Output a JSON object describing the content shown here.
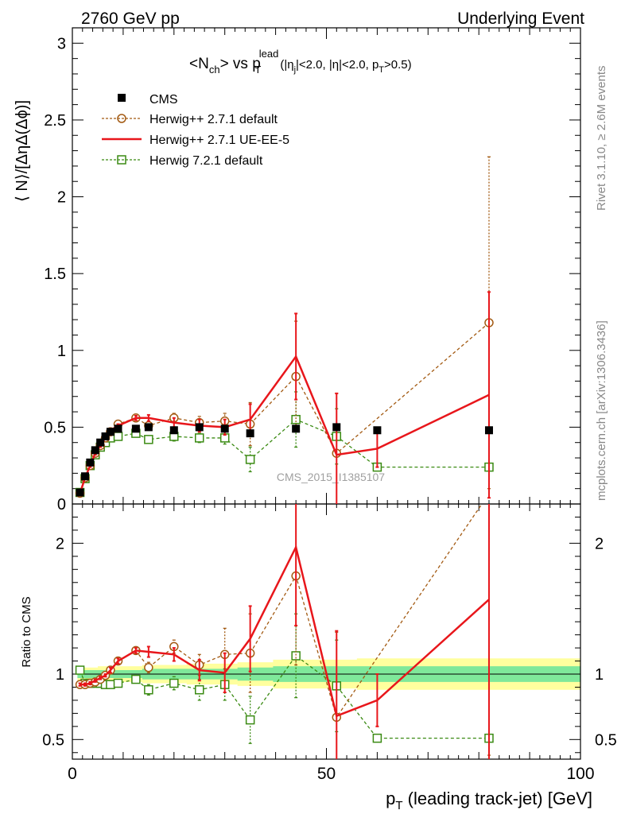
{
  "header": {
    "left": "2760 GeV pp",
    "right": "Underlying Event",
    "rivet": "Rivet 3.1.10, ≥ 2.6M events",
    "mcplots": "mcplots.cern.ch [arXiv:1306.3436]"
  },
  "chart_data": {
    "type": "scatter",
    "title_main": "<N",
    "title_sub_ch": "ch",
    "title_vs": "> vs p",
    "title_sub_T": "T",
    "title_sup_lead": "lead",
    "title_cuts": "(|η",
    "title_sub_j": "j",
    "title_cuts2": "|<2.0, |η|<2.0, p",
    "title_sub_T2": "T",
    "title_cuts3": ">0.5)",
    "watermark": "CMS_2015_I1385107",
    "ylabel_top": "⟨ N⟩/[ΔηΔ(Δϕ)]",
    "ylabel_bottom": "Ratio to CMS",
    "xlabel": "p",
    "xlabel_sub": "T",
    "xlabel_rest": " (leading track-jet) [GeV]",
    "xlim": [
      0,
      100
    ],
    "ylim_top": [
      0,
      3.1
    ],
    "ylim_bottom": [
      0.35,
      2.3
    ],
    "x_ticks": [
      "0",
      "50",
      "100"
    ],
    "y_ticks_top": [
      "0",
      "0.5",
      "1",
      "1.5",
      "2",
      "2.5",
      "3"
    ],
    "y_ticks_bottom": [
      "0.5",
      "1",
      "2"
    ],
    "legend": [
      "CMS",
      "Herwig++ 2.7.1 default",
      "Herwig++ 2.7.1 UE-EE-5",
      "Herwig 7.2.1 default"
    ],
    "colors": {
      "cms": "#000000",
      "h27": "#a35a12",
      "ue": "#e8161b",
      "h72": "#3a8a12",
      "band_inner": "#7fe89a",
      "band_outer": "#ffff9e"
    },
    "x": [
      1.5,
      2.5,
      3.5,
      4.5,
      5.5,
      6.5,
      7.5,
      9,
      12.5,
      15,
      20,
      25,
      30,
      35,
      44,
      52,
      60,
      82
    ],
    "cms": [
      0.075,
      0.18,
      0.27,
      0.35,
      0.4,
      0.44,
      0.47,
      0.49,
      0.49,
      0.5,
      0.48,
      0.5,
      0.49,
      0.46,
      0.49,
      0.5,
      0.48,
      0.48
    ],
    "h27": {
      "values": [
        0.07,
        0.17,
        0.25,
        0.33,
        0.38,
        0.43,
        0.47,
        0.52,
        0.56,
        0.51,
        0.56,
        0.53,
        0.54,
        0.52,
        0.83,
        0.33,
        null,
        1.18
      ],
      "errs": [
        0.01,
        0.01,
        0.01,
        0.01,
        0.01,
        0.01,
        0.01,
        0.01,
        0.015,
        0.02,
        0.03,
        0.04,
        0.05,
        0.14,
        0.36,
        0.39,
        null,
        1.08
      ]
    },
    "ue": {
      "values": [
        0.07,
        0.17,
        0.25,
        0.33,
        0.38,
        0.43,
        0.48,
        0.51,
        0.56,
        0.56,
        0.53,
        0.51,
        0.5,
        0.55,
        0.96,
        0.32,
        0.36,
        0.71
      ],
      "errs": [
        0.01,
        0.01,
        0.01,
        0.01,
        0.01,
        0.01,
        0.01,
        0.01,
        0.015,
        0.02,
        0.03,
        0.04,
        0.05,
        0.1,
        0.28,
        0.4,
        0.12,
        0.67
      ]
    },
    "h72": {
      "values": [
        0.075,
        0.165,
        0.25,
        0.32,
        0.37,
        0.4,
        0.43,
        0.44,
        0.46,
        0.42,
        0.44,
        0.43,
        0.43,
        0.29,
        0.55,
        0.44,
        0.24,
        0.24
      ],
      "errs": [
        0.01,
        0.01,
        0.01,
        0.01,
        0.01,
        0.01,
        0.01,
        0.01,
        0.015,
        0.02,
        0.03,
        0.03,
        0.04,
        0.08,
        0.18,
        0.18,
        0.02,
        0.02
      ]
    },
    "ratio": {
      "h27": {
        "values": [
          0.92,
          0.92,
          0.93,
          0.94,
          0.96,
          0.99,
          1.03,
          1.1,
          1.18,
          1.05,
          1.21,
          1.07,
          1.15,
          1.16,
          1.75,
          0.67,
          null,
          2.38
        ],
        "errs": [
          0.01,
          0.01,
          0.01,
          0.01,
          0.01,
          0.01,
          0.02,
          0.02,
          0.02,
          0.04,
          0.05,
          0.08,
          0.2,
          0.3,
          0.68,
          0.65,
          null,
          2.0
        ]
      },
      "ue": {
        "values": [
          0.92,
          0.92,
          0.93,
          0.95,
          0.97,
          0.99,
          1.03,
          1.1,
          1.18,
          1.17,
          1.15,
          1.03,
          1.01,
          1.27,
          1.97,
          0.68,
          0.8,
          1.57
        ],
        "errs": [
          0.01,
          0.01,
          0.01,
          0.01,
          0.01,
          0.01,
          0.02,
          0.02,
          0.02,
          0.04,
          0.05,
          0.08,
          0.15,
          0.25,
          0.6,
          0.65,
          0.2,
          1.45
        ]
      },
      "h72": {
        "values": [
          1.03,
          0.93,
          0.93,
          0.93,
          0.93,
          0.92,
          0.92,
          0.93,
          0.96,
          0.88,
          0.93,
          0.88,
          0.92,
          0.65,
          1.14,
          0.91,
          0.51,
          0.51
        ],
        "errs": [
          0.01,
          0.01,
          0.01,
          0.01,
          0.01,
          0.01,
          0.02,
          0.02,
          0.02,
          0.04,
          0.05,
          0.08,
          0.12,
          0.18,
          0.32,
          0.35,
          0.01,
          0.01
        ]
      },
      "band_inner": [
        0.03,
        0.03,
        0.03,
        0.03,
        0.03,
        0.03,
        0.03,
        0.03,
        0.03,
        0.04,
        0.04,
        0.04,
        0.04,
        0.05,
        0.06,
        0.06,
        0.06,
        0.06
      ],
      "band_outer": [
        0.05,
        0.05,
        0.05,
        0.05,
        0.06,
        0.06,
        0.06,
        0.06,
        0.06,
        0.07,
        0.07,
        0.08,
        0.08,
        0.09,
        0.11,
        0.11,
        0.12,
        0.12
      ]
    }
  }
}
